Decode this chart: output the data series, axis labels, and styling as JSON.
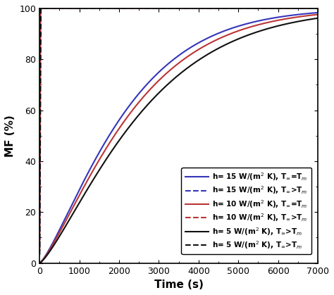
{
  "title": "",
  "xlabel": "Time (s)",
  "ylabel": "MF (%)",
  "xlim": [
    0,
    7000
  ],
  "ylim": [
    0,
    100
  ],
  "xticks": [
    0,
    1000,
    2000,
    3000,
    4000,
    5000,
    6000,
    7000
  ],
  "yticks": [
    0,
    20,
    40,
    60,
    80,
    100
  ],
  "solid_curves": [
    {
      "label": "h= 15 W/(m$^2$ K), T$_\\infty$=T$_m$",
      "color": "#3535bb",
      "k": 0.00043,
      "n": 1.28
    },
    {
      "label": "h= 10 W/(m$^2$ K), T$_\\infty$=T$_m$",
      "color": "#bb3535",
      "k": 0.0004,
      "n": 1.28
    },
    {
      "label": "h= 5 W/(m$^2$ K), T$_\\infty$>T$_m$",
      "color": "#111111",
      "k": 0.00036,
      "n": 1.28
    }
  ],
  "dashed_curves": [
    {
      "label": "h= 15 W/(m$^2$ K), T$_\\infty$>T$_m$",
      "color": "#3535bb",
      "k": 0.06,
      "n": 1.0
    },
    {
      "label": "h= 10 W/(m$^2$ K), T$_\\infty$>T$_m$",
      "color": "#bb3535",
      "k": 0.048,
      "n": 1.0
    },
    {
      "label": "h= 5 W/(m$^2$ K), T$_\\infty$>T$_m$",
      "color": "#111111",
      "k": 0.033,
      "n": 1.0
    }
  ]
}
